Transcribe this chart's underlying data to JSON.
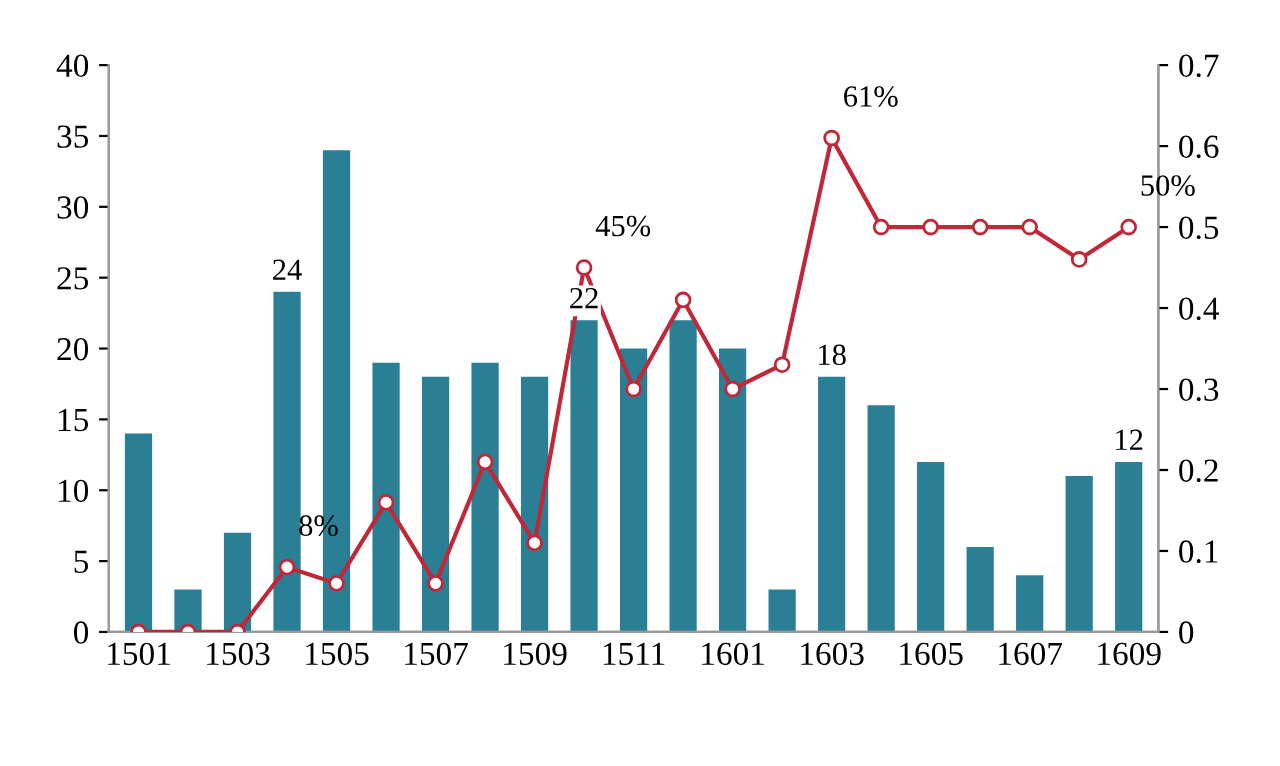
{
  "chart_data": {
    "type": "bar",
    "categories": [
      "1501",
      null,
      "1503",
      null,
      "1505",
      null,
      "1507",
      null,
      "1509",
      null,
      "1511",
      null,
      "1601",
      null,
      "1603",
      null,
      "1605",
      null,
      "1607",
      null,
      "1609"
    ],
    "series": [
      {
        "color": "#2a7f95",
        "values": [
          14,
          3,
          7,
          24,
          34,
          19,
          18,
          19,
          18,
          22,
          20,
          22,
          20,
          3,
          18,
          16,
          12,
          6,
          4,
          11,
          12
        ],
        "value_labels": [
          null,
          null,
          null,
          "24",
          null,
          null,
          null,
          null,
          null,
          "22",
          null,
          null,
          null,
          null,
          "18",
          null,
          null,
          null,
          null,
          null,
          "12"
        ]
      },
      {
        "type": "line",
        "axis": "y2",
        "color": "#c0283a",
        "marker": "circle",
        "values": [
          0,
          0,
          0,
          0.08,
          0.06,
          0.16,
          0.06,
          0.21,
          0.11,
          0.45,
          0.3,
          0.41,
          0.3,
          0.33,
          0.61,
          0.5,
          0.5,
          0.5,
          0.5,
          0.46,
          0.5
        ],
        "value_labels": [
          null,
          null,
          null,
          "8%",
          null,
          null,
          null,
          null,
          null,
          "45%",
          null,
          null,
          null,
          null,
          "61%",
          null,
          null,
          null,
          null,
          null,
          "50%"
        ]
      }
    ],
    "ylim": [
      0,
      40
    ],
    "yticks": [
      0,
      5,
      10,
      15,
      20,
      25,
      30,
      35,
      40
    ],
    "y2lim": [
      0,
      0.7
    ],
    "y2ticks": [
      0,
      0.1,
      0.2,
      0.3,
      0.4,
      0.5,
      0.6,
      0.7
    ],
    "grid": false,
    "legend": false
  }
}
